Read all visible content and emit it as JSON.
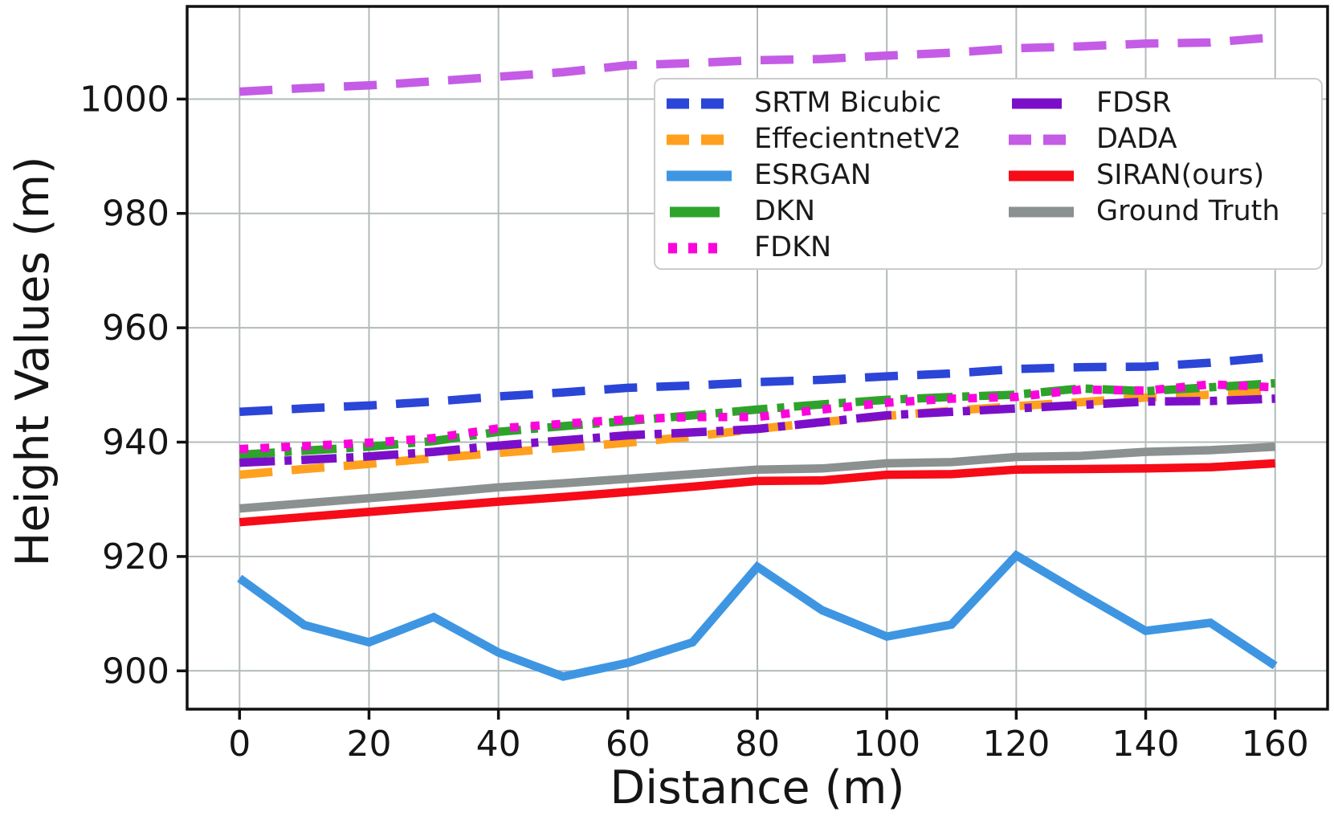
{
  "chart_data": {
    "type": "line",
    "title": "",
    "xlabel": "Distance (m)",
    "ylabel": "Height Values (m)",
    "x": [
      0,
      10,
      20,
      30,
      40,
      50,
      60,
      70,
      80,
      90,
      100,
      110,
      120,
      130,
      140,
      150,
      160
    ],
    "xticks": [
      0,
      20,
      40,
      60,
      80,
      100,
      120,
      140,
      160
    ],
    "yticks": [
      900,
      920,
      940,
      960,
      980,
      1000
    ],
    "xlim": [
      -8.1,
      168.1
    ],
    "ylim": [
      893.3,
      1016.2
    ],
    "grid": true,
    "grid_color": "#b3baba",
    "legend_position": "upper right, two columns",
    "series": [
      {
        "name": "SRTM Bicubic",
        "color": "#2b45d7",
        "style": "dashed",
        "values": [
          945.3,
          945.9,
          946.4,
          947.1,
          948.0,
          948.7,
          949.5,
          949.9,
          950.5,
          950.9,
          951.5,
          952.0,
          952.8,
          953.1,
          953.2,
          953.9,
          954.9
        ]
      },
      {
        "name": "EffecientnetV2",
        "color": "#ffa01e",
        "style": "dashed",
        "values": [
          934.3,
          935.3,
          936.2,
          937.2,
          938.1,
          939.0,
          939.9,
          941.0,
          942.3,
          943.5,
          944.6,
          945.5,
          946.3,
          947.0,
          947.8,
          948.3,
          948.9
        ]
      },
      {
        "name": "ESRGAN",
        "color": "#3e96e2",
        "style": "solid",
        "values": [
          916.2,
          908.0,
          905.0,
          909.4,
          903.2,
          899.0,
          901.4,
          905.0,
          918.2,
          910.6,
          906.0,
          908.1,
          920.2,
          913.5,
          907.0,
          908.4,
          900.9
        ]
      },
      {
        "name": "DKN",
        "color": "#2ea32b",
        "style": "dashdot",
        "values": [
          937.8,
          938.5,
          939.2,
          940.2,
          941.8,
          942.8,
          943.7,
          944.7,
          945.7,
          946.6,
          947.4,
          947.9,
          948.3,
          949.4,
          948.9,
          949.6,
          950.3
        ]
      },
      {
        "name": "FDKN",
        "color": "#fb04dc",
        "style": "dotted",
        "values": [
          938.8,
          939.3,
          939.9,
          940.7,
          942.4,
          943.2,
          944.0,
          944.4,
          944.4,
          945.7,
          946.9,
          947.6,
          947.9,
          949.2,
          949.0,
          950.1,
          949.6
        ]
      },
      {
        "name": "FDSR",
        "color": "#7b0fc9",
        "style": "dashdot",
        "values": [
          936.4,
          936.9,
          937.5,
          938.3,
          939.4,
          940.3,
          941.2,
          941.7,
          942.3,
          943.5,
          944.7,
          945.3,
          945.9,
          946.5,
          947.1,
          947.2,
          947.6
        ]
      },
      {
        "name": "DADA",
        "color": "#c45ce6",
        "style": "dashed",
        "values": [
          1001.3,
          1001.9,
          1002.4,
          1003.1,
          1003.9,
          1004.7,
          1005.9,
          1006.3,
          1006.8,
          1007.0,
          1007.6,
          1008.1,
          1008.9,
          1009.2,
          1009.7,
          1009.9,
          1010.8
        ]
      },
      {
        "name": "SIRAN(ours)",
        "color": "#f60b18",
        "style": "solid",
        "values": [
          926.0,
          926.9,
          927.8,
          928.7,
          929.6,
          930.4,
          931.3,
          932.2,
          933.2,
          933.3,
          934.3,
          934.4,
          935.2,
          935.3,
          935.4,
          935.6,
          936.3
        ]
      },
      {
        "name": "Ground Truth",
        "color": "#8a9190",
        "style": "solid",
        "values": [
          928.4,
          929.3,
          930.2,
          931.1,
          932.1,
          932.8,
          933.6,
          934.4,
          935.2,
          935.4,
          936.3,
          936.5,
          937.4,
          937.6,
          938.3,
          938.6,
          939.2
        ]
      }
    ],
    "legend_columns": [
      [
        "SRTM Bicubic",
        "EffecientnetV2",
        "ESRGAN",
        "DKN",
        "FDKN"
      ],
      [
        "FDSR",
        "DADA",
        "SIRAN(ours)",
        "Ground Truth"
      ]
    ]
  }
}
